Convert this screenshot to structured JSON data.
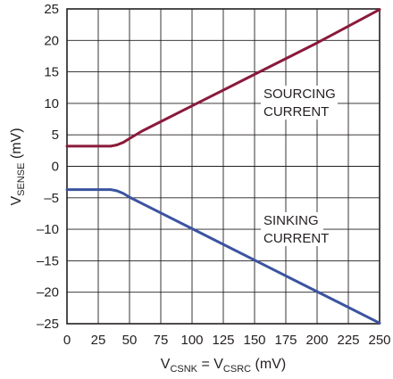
{
  "chart_data": {
    "type": "line",
    "xlim": [
      0,
      250
    ],
    "ylim": [
      -25,
      25
    ],
    "x_ticks": [
      "0",
      "25",
      "50",
      "75",
      "100",
      "125",
      "150",
      "175",
      "200",
      "225",
      "250"
    ],
    "y_ticks": [
      "25",
      "20",
      "15",
      "10",
      "5",
      "0",
      "–5",
      "–10",
      "–15",
      "–20",
      "–25"
    ],
    "grid": true,
    "xlabel": {
      "main1": "V",
      "sub1": "CSNK",
      "mid": " = V",
      "sub2": "CSRC",
      "tail": " (mV)"
    },
    "ylabel": {
      "main": "V",
      "sub": "SENSE",
      "tail": " (mV)"
    },
    "series": [
      {
        "name_lines": [
          "SOURCING",
          "CURRENT"
        ],
        "color": "#8b1a3a",
        "points": [
          [
            0,
            3.2
          ],
          [
            35,
            3.2
          ],
          [
            40,
            3.4
          ],
          [
            45,
            3.8
          ],
          [
            50,
            4.4
          ],
          [
            60,
            5.6
          ],
          [
            100,
            9.6
          ],
          [
            150,
            14.6
          ],
          [
            200,
            19.6
          ],
          [
            250,
            24.9
          ]
        ]
      },
      {
        "name_lines": [
          "SINKING",
          "CURRENT"
        ],
        "color": "#3a54a0",
        "points": [
          [
            0,
            -3.7
          ],
          [
            35,
            -3.7
          ],
          [
            40,
            -3.9
          ],
          [
            45,
            -4.3
          ],
          [
            50,
            -4.9
          ],
          [
            60,
            -5.9
          ],
          [
            100,
            -9.9
          ],
          [
            150,
            -14.9
          ],
          [
            200,
            -19.9
          ],
          [
            250,
            -24.9
          ]
        ]
      }
    ]
  }
}
